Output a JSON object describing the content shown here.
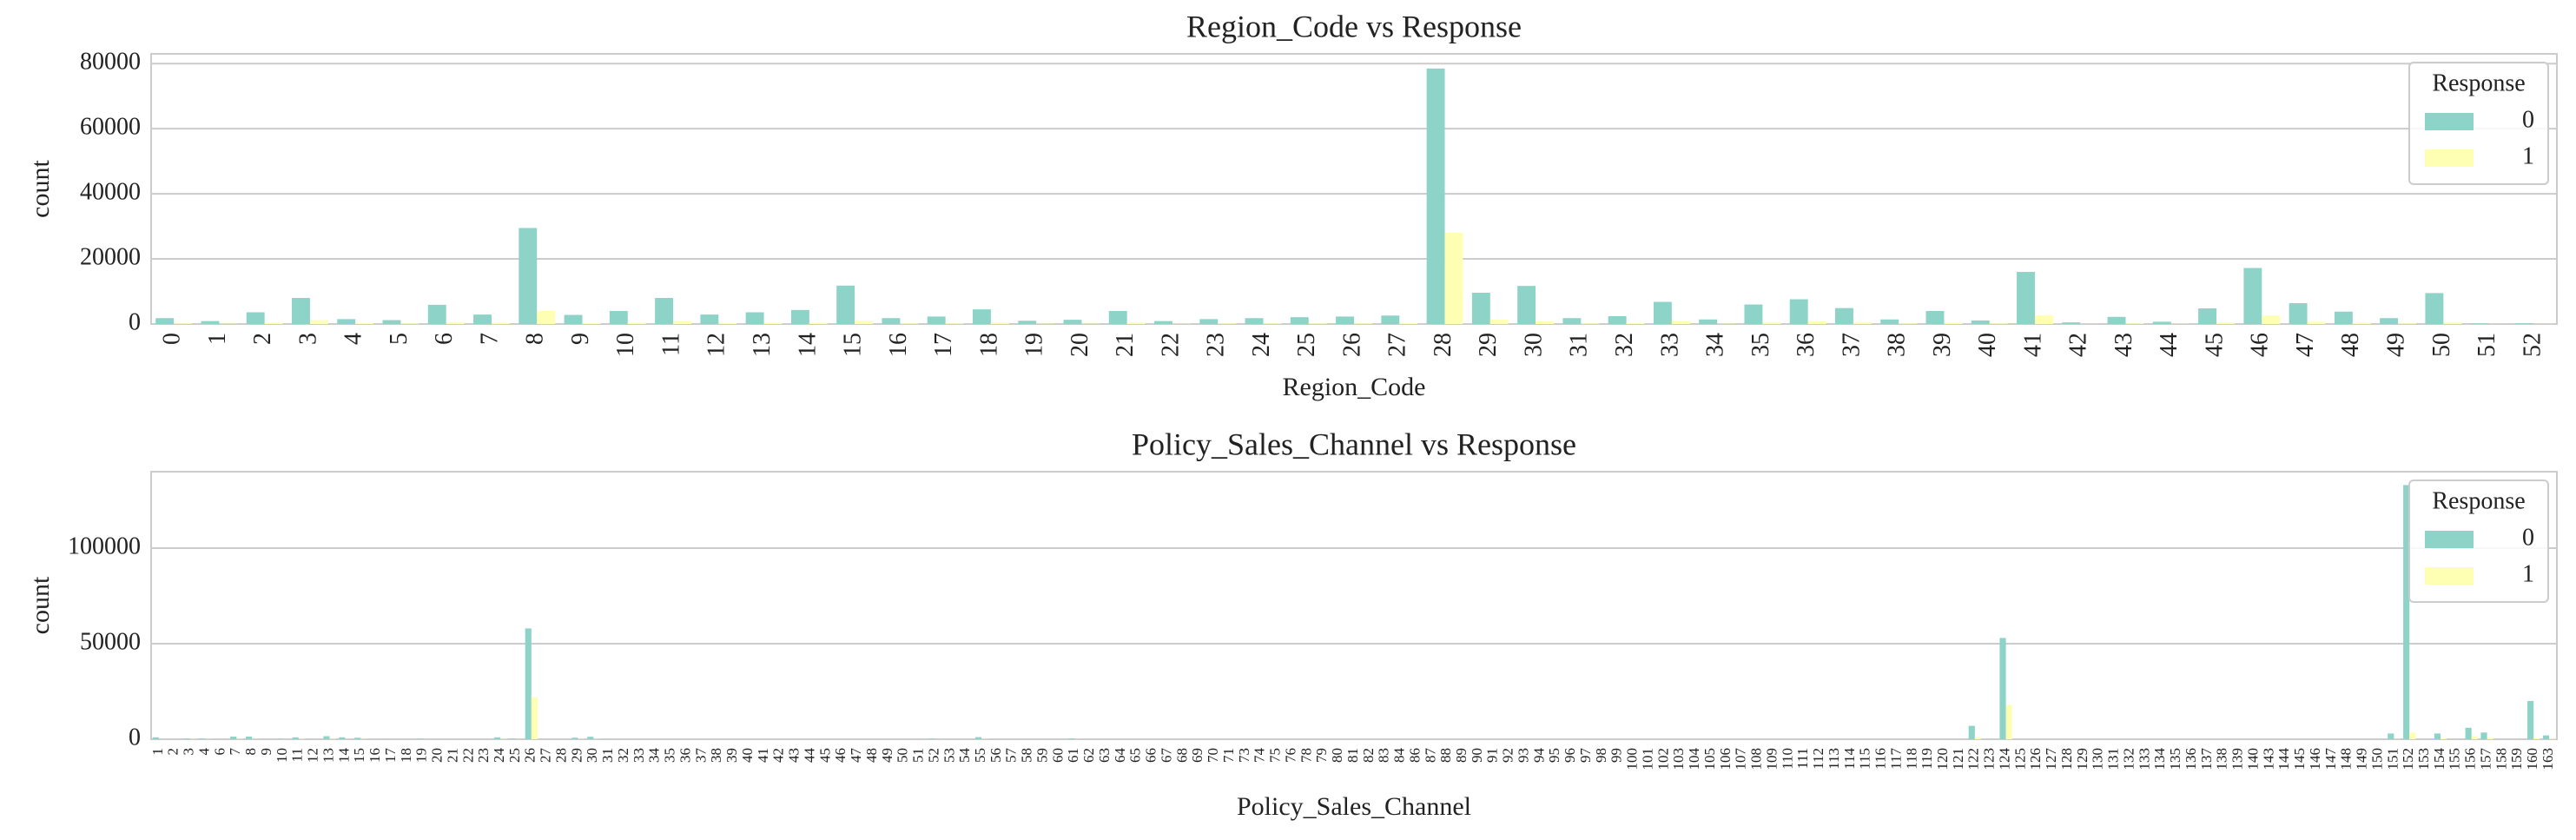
{
  "chart_data": [
    {
      "type": "bar",
      "title": "Region_Code vs Response",
      "xlabel": "Region_Code",
      "ylabel": "count",
      "categories": [
        0,
        1,
        2,
        3,
        4,
        5,
        6,
        7,
        8,
        9,
        10,
        11,
        12,
        13,
        14,
        15,
        16,
        17,
        18,
        19,
        20,
        21,
        22,
        23,
        24,
        25,
        26,
        27,
        28,
        29,
        30,
        31,
        32,
        33,
        34,
        35,
        36,
        37,
        38,
        39,
        40,
        41,
        42,
        43,
        44,
        45,
        46,
        47,
        48,
        49,
        50,
        51,
        52
      ],
      "series": [
        {
          "name": "0",
          "color": "#8dd3c7",
          "values": [
            1800,
            900,
            3600,
            8000,
            1500,
            1200,
            5900,
            2900,
            29500,
            2800,
            4000,
            8000,
            2900,
            3600,
            4300,
            11800,
            1800,
            2300,
            4500,
            1000,
            1300,
            4000,
            900,
            1500,
            1800,
            2100,
            2300,
            2600,
            78500,
            9600,
            11700,
            1800,
            2400,
            6800,
            1400,
            6000,
            7600,
            4900,
            1400,
            4000,
            1100,
            16000,
            500,
            2200,
            700,
            4800,
            17200,
            6400,
            3800,
            1800,
            9500,
            150,
            200
          ]
        },
        {
          "name": "1",
          "color": "#ffffb3",
          "values": [
            200,
            100,
            400,
            1200,
            300,
            200,
            600,
            400,
            4000,
            300,
            400,
            900,
            300,
            400,
            400,
            1000,
            200,
            200,
            500,
            100,
            100,
            500,
            100,
            200,
            200,
            200,
            200,
            300,
            28000,
            1300,
            800,
            200,
            300,
            900,
            100,
            600,
            800,
            600,
            200,
            400,
            200,
            2700,
            50,
            200,
            100,
            500,
            2600,
            700,
            400,
            200,
            600,
            30,
            50
          ]
        }
      ],
      "legend_title": "Response",
      "legend": "upper right",
      "ylim": [
        0,
        83000
      ],
      "yticks": [
        0,
        20000,
        40000,
        60000,
        80000
      ],
      "grid": true
    },
    {
      "type": "bar",
      "title": "Policy_Sales_Channel vs Response",
      "xlabel": "Policy_Sales_Channel",
      "ylabel": "count",
      "categories": [
        1,
        2,
        3,
        4,
        6,
        7,
        8,
        9,
        10,
        11,
        12,
        13,
        14,
        15,
        16,
        17,
        18,
        19,
        20,
        21,
        22,
        23,
        24,
        25,
        26,
        27,
        28,
        29,
        30,
        31,
        32,
        33,
        34,
        35,
        36,
        37,
        38,
        39,
        40,
        41,
        42,
        43,
        44,
        45,
        46,
        47,
        48,
        49,
        50,
        51,
        52,
        53,
        54,
        55,
        56,
        57,
        58,
        59,
        60,
        61,
        62,
        63,
        64,
        65,
        66,
        67,
        68,
        69,
        70,
        71,
        73,
        74,
        75,
        76,
        78,
        79,
        80,
        81,
        82,
        83,
        84,
        86,
        87,
        88,
        89,
        90,
        91,
        92,
        93,
        94,
        95,
        96,
        97,
        98,
        99,
        100,
        101,
        102,
        103,
        104,
        105,
        106,
        107,
        108,
        109,
        110,
        111,
        112,
        113,
        114,
        115,
        116,
        117,
        118,
        119,
        120,
        121,
        122,
        123,
        124,
        125,
        126,
        127,
        128,
        129,
        130,
        131,
        132,
        133,
        134,
        135,
        136,
        137,
        138,
        139,
        140,
        143,
        144,
        145,
        146,
        147,
        148,
        149,
        150,
        151,
        152,
        153,
        154,
        155,
        156,
        157,
        158,
        159,
        160,
        163
      ],
      "series": [
        {
          "name": "0",
          "color": "#8dd3c7",
          "values": [
            1000,
            4,
            360,
            420,
            1,
            1400,
            1400,
            20,
            230,
            980,
            60,
            1600,
            1000,
            800,
            1,
            100,
            1,
            200,
            1,
            30,
            1,
            1,
            1000,
            300,
            58000,
            1,
            1,
            800,
            1300,
            100,
            1,
            1,
            1,
            1,
            1,
            1,
            1,
            1,
            1,
            1,
            30,
            1,
            1,
            1,
            1,
            1,
            1,
            1,
            1,
            1,
            300,
            1,
            1,
            1100,
            1,
            1,
            1,
            1,
            1,
            400,
            1,
            1,
            1,
            1,
            1,
            1,
            1,
            1,
            1,
            1,
            1,
            1,
            1,
            1,
            1,
            1,
            1,
            1,
            1,
            1,
            1,
            1,
            1,
            1,
            1,
            1,
            1,
            1,
            1,
            1,
            1,
            1,
            1,
            1,
            1,
            1,
            1,
            1,
            1,
            1,
            1,
            1,
            1,
            1,
            1,
            1,
            1,
            1,
            1,
            1,
            1,
            1,
            1,
            1,
            1,
            1,
            1,
            7000,
            1,
            53000,
            1,
            1,
            1,
            1,
            1,
            1,
            1,
            1,
            1,
            1,
            1,
            1,
            1,
            1,
            1,
            1,
            1,
            1,
            1,
            1,
            1,
            1,
            1,
            1,
            3000,
            133000,
            1,
            3000,
            1,
            6000,
            3500,
            1,
            1,
            20000,
            2000
          ]
        },
        {
          "name": "1",
          "color": "#ffffb3",
          "values": [
            30,
            0,
            150,
            80,
            0,
            180,
            80,
            0,
            20,
            220,
            10,
            240,
            100,
            150,
            0,
            10,
            0,
            20,
            0,
            5,
            0,
            0,
            200,
            60,
            22000,
            0,
            0,
            150,
            100,
            10,
            0,
            0,
            0,
            0,
            0,
            0,
            0,
            0,
            0,
            0,
            0,
            0,
            0,
            0,
            0,
            0,
            0,
            0,
            0,
            0,
            30,
            0,
            0,
            150,
            0,
            0,
            0,
            0,
            0,
            50,
            0,
            0,
            0,
            0,
            0,
            0,
            0,
            0,
            0,
            0,
            0,
            0,
            0,
            0,
            0,
            0,
            0,
            0,
            0,
            0,
            0,
            0,
            0,
            0,
            0,
            0,
            0,
            0,
            0,
            0,
            0,
            0,
            0,
            0,
            0,
            0,
            0,
            0,
            0,
            0,
            0,
            0,
            0,
            0,
            0,
            0,
            0,
            0,
            0,
            0,
            0,
            0,
            0,
            0,
            0,
            0,
            0,
            1000,
            0,
            18000,
            0,
            0,
            0,
            0,
            0,
            0,
            0,
            0,
            0,
            0,
            0,
            0,
            0,
            0,
            0,
            0,
            0,
            0,
            0,
            0,
            0,
            0,
            0,
            0,
            100,
            3500,
            0,
            500,
            0,
            1500,
            1000,
            0,
            0,
            500,
            300
          ]
        }
      ],
      "legend_title": "Response",
      "legend": "upper right",
      "ylim": [
        0,
        140000
      ],
      "yticks": [
        0,
        50000,
        100000
      ],
      "grid": true
    }
  ]
}
